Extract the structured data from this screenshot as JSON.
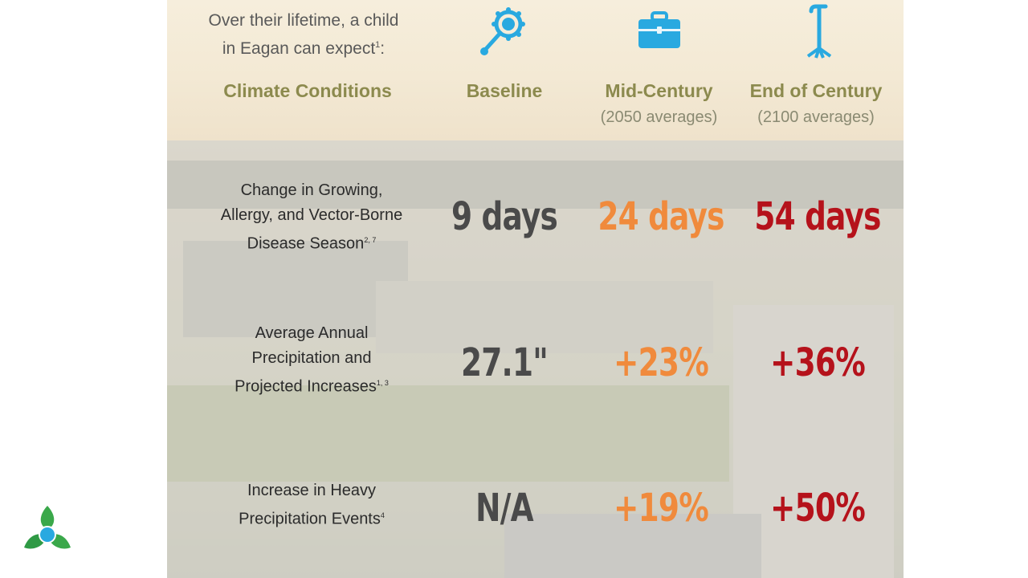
{
  "intro": {
    "line1": "Over their lifetime, a child",
    "line2": "in Eagan can expect",
    "sup": "1",
    "colon": ":"
  },
  "icons": {
    "baseline": "baby-rattle-icon",
    "mid_century": "briefcase-icon",
    "end_century": "walking-cane-icon",
    "color": "#29a9e0"
  },
  "columns": {
    "conditions": "Climate Conditions",
    "baseline": "Baseline",
    "mid_century": "Mid-Century",
    "mid_century_sub": "(2050 averages)",
    "end_century": "End of Century",
    "end_century_sub": "(2100 averages)"
  },
  "rows": [
    {
      "label_lines": [
        "Change in Growing,",
        "Allergy, and Vector-Borne",
        "Disease Season"
      ],
      "sup": "2, 7",
      "baseline": "9 days",
      "mid_century": "24 days",
      "end_century": "54 days"
    },
    {
      "label_lines": [
        "Average Annual",
        "Precipitation and",
        "Projected Increases"
      ],
      "sup": "1, 3",
      "baseline": "27.1\"",
      "mid_century": "+23%",
      "end_century": "+36%"
    },
    {
      "label_lines": [
        "Increase in Heavy",
        "Precipitation Events"
      ],
      "sup": "4",
      "baseline": "N/A",
      "mid_century": "+19%",
      "end_century": "+50%"
    }
  ],
  "colors": {
    "baseline_value": "#4a4a4a",
    "mid_century_value": "#f08a3c",
    "end_century_value": "#b5121b",
    "header_text": "#8c8a4e"
  },
  "logo": "tri-leaf-logo-icon"
}
